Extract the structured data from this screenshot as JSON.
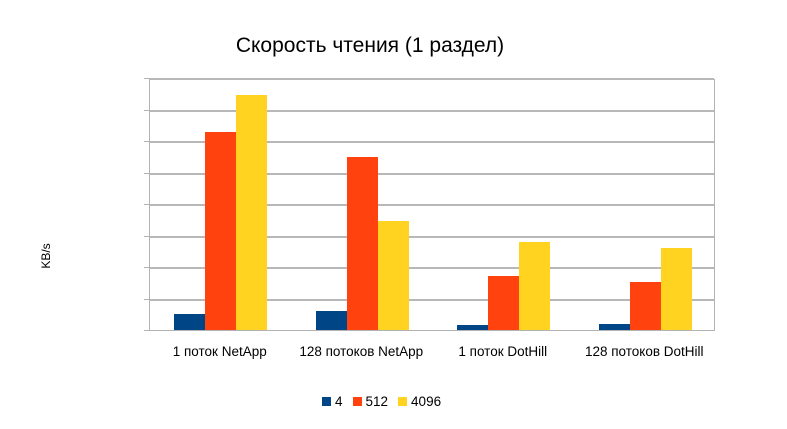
{
  "chart_data": {
    "type": "bar",
    "title": "Скорость чтения (1 раздел)",
    "xlabel": "",
    "ylabel": "KB/s",
    "ylim": [
      0,
      800000
    ],
    "yticks": [
      "0",
      "100 000",
      "200 000",
      "300 000",
      "400 000",
      "500 000",
      "600 000",
      "700 000",
      "800 000"
    ],
    "grid": true,
    "legend_position": "bottom",
    "categories": [
      "1 поток NetApp",
      "128 потоков NetApp",
      "1 поток DotHill",
      "128 потоков DotHill"
    ],
    "series": [
      {
        "name": "4",
        "color": "#004586",
        "values": [
          50000,
          60000,
          16000,
          19000
        ]
      },
      {
        "name": "512",
        "color": "#ff420e",
        "values": [
          629000,
          550000,
          171000,
          152000
        ]
      },
      {
        "name": "4096",
        "color": "#ffd320",
        "values": [
          746000,
          345000,
          281000,
          259000
        ]
      }
    ]
  }
}
